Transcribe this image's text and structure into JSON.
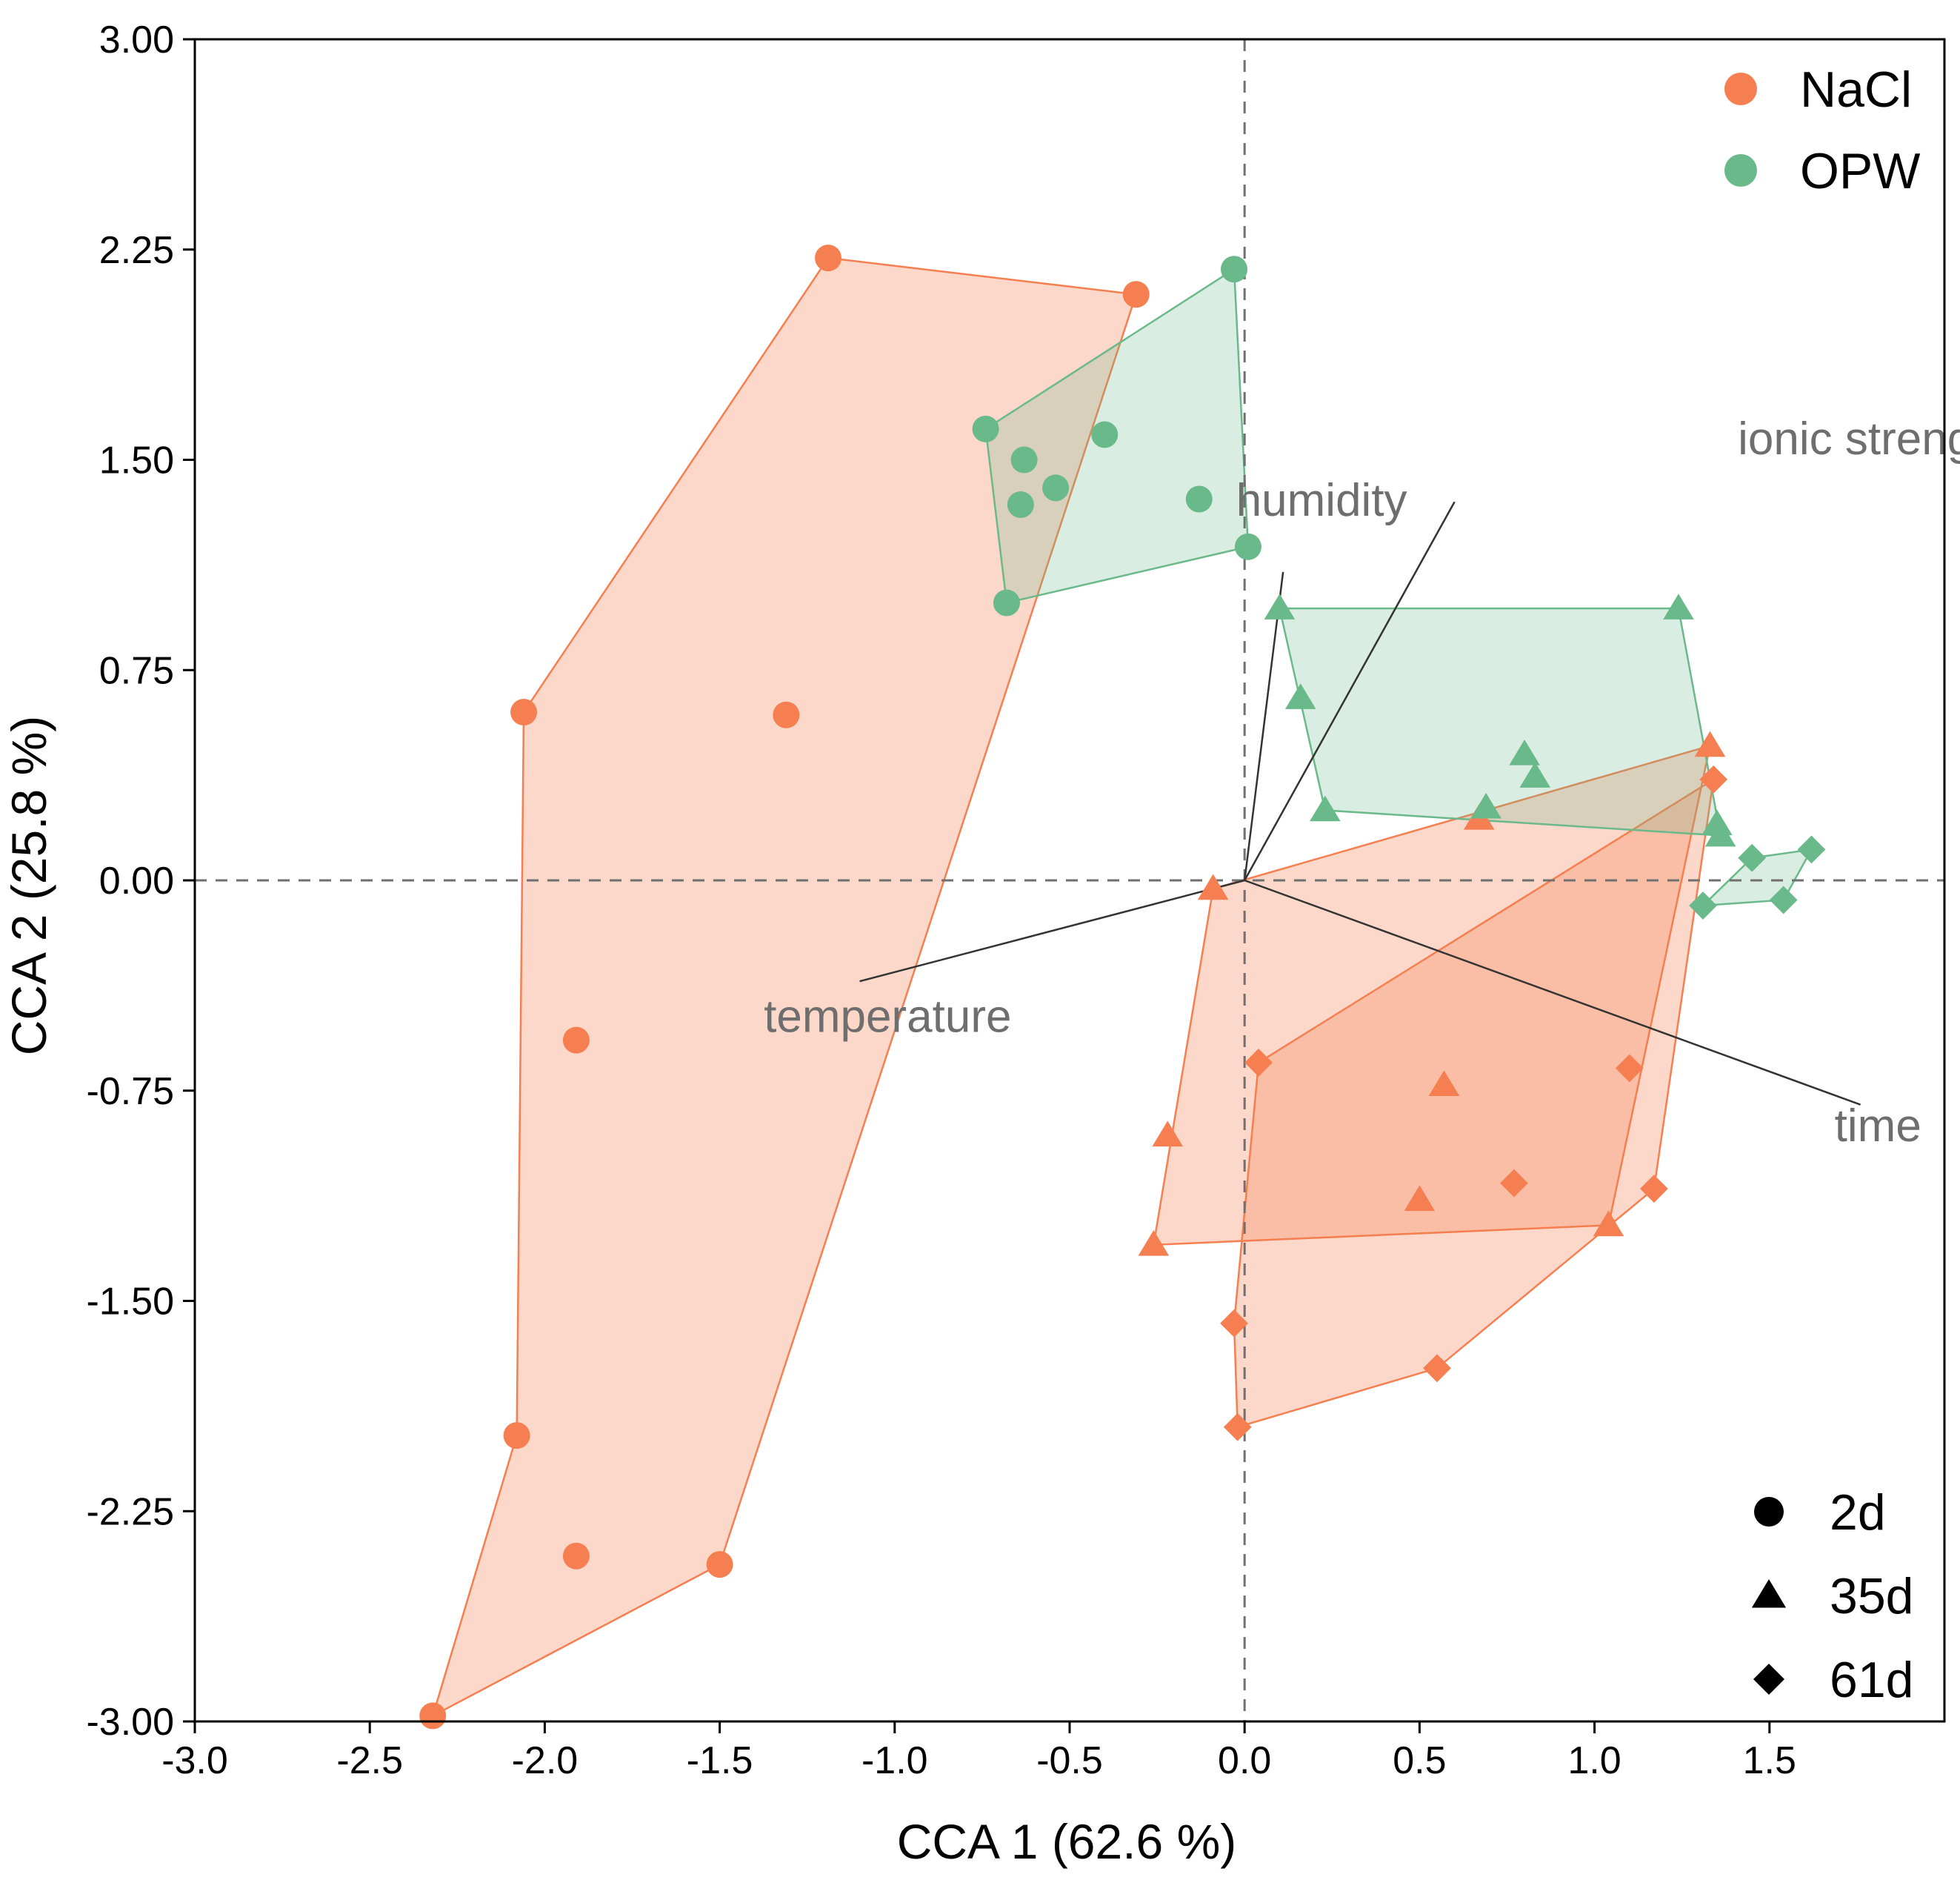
{
  "chart_data": {
    "type": "scatter",
    "title": "",
    "xlabel": "CCA 1 (62.6 %)",
    "ylabel": "CCA 2 (25.8 %)",
    "xlim": [
      -3.0,
      2.0
    ],
    "ylim": [
      -3.0,
      3.0
    ],
    "x_ticks": [
      -3.0,
      -2.5,
      -2.0,
      -1.5,
      -1.0,
      -0.5,
      0.0,
      0.5,
      1.0,
      1.5
    ],
    "x_tick_labels": [
      "-3.0",
      "-2.5",
      "-2.0",
      "-1.5",
      "-1.0",
      "-0.5",
      "0.0",
      "0.5",
      "1.0",
      "1.5"
    ],
    "y_ticks": [
      3.0,
      2.25,
      1.5,
      0.75,
      0.0,
      -0.75,
      -1.5,
      -2.25,
      -3.0
    ],
    "y_tick_labels": [
      "3.00",
      "2.25",
      "1.50",
      "0.75",
      "0.00",
      "-0.75",
      "-1.50",
      "-2.25",
      "-3.00"
    ],
    "colors": {
      "NaCl": "#F57F50",
      "OPW": "#6AB98A"
    },
    "legend_groups": {
      "placement": "top-right",
      "items": [
        {
          "label": "NaCl",
          "group": "NaCl"
        },
        {
          "label": "OPW",
          "group": "OPW"
        }
      ]
    },
    "legend_shapes": {
      "placement": "bottom-right",
      "items": [
        {
          "label": "2d",
          "shape": "circle"
        },
        {
          "label": "35d",
          "shape": "triangle"
        },
        {
          "label": "61d",
          "shape": "diamond"
        }
      ]
    },
    "vectors": [
      {
        "label": "ionic strength",
        "end": [
          0.6,
          1.35
        ],
        "label_pos": [
          1.8,
          1.52
        ]
      },
      {
        "label": "humidity",
        "end": [
          0.11,
          1.1
        ],
        "label_pos": [
          0.22,
          1.3
        ]
      },
      {
        "label": "temperature",
        "end": [
          -1.1,
          -0.36
        ],
        "label_pos": [
          -1.02,
          -0.54
        ]
      },
      {
        "label": "time",
        "end": [
          1.76,
          -0.8
        ],
        "label_pos": [
          1.81,
          -0.93
        ]
      }
    ],
    "series": [
      {
        "name": "NaCl 2d",
        "group": "NaCl",
        "shape": "circle",
        "points": [
          [
            -1.19,
            2.22
          ],
          [
            -0.31,
            2.09
          ],
          [
            -2.06,
            0.6
          ],
          [
            -1.31,
            0.59
          ],
          [
            -1.91,
            -0.57
          ],
          [
            -2.08,
            -1.98
          ],
          [
            -1.91,
            -2.41
          ],
          [
            -1.5,
            -2.44
          ],
          [
            -2.32,
            -2.98
          ]
        ],
        "hull": [
          [
            -1.19,
            2.22
          ],
          [
            -0.31,
            2.09
          ],
          [
            -1.5,
            -2.44
          ],
          [
            -2.32,
            -2.98
          ],
          [
            -2.08,
            -1.98
          ],
          [
            -2.06,
            0.6
          ]
        ]
      },
      {
        "name": "NaCl 35d",
        "group": "NaCl",
        "shape": "triangle",
        "points": [
          [
            1.33,
            0.48
          ],
          [
            0.67,
            0.22
          ],
          [
            -0.09,
            -0.03
          ],
          [
            0.57,
            -0.73
          ],
          [
            -0.22,
            -0.91
          ],
          [
            0.5,
            -1.14
          ],
          [
            -0.26,
            -1.3
          ],
          [
            1.04,
            -1.23
          ]
        ],
        "hull": [
          [
            1.33,
            0.48
          ],
          [
            1.04,
            -1.23
          ],
          [
            -0.26,
            -1.3
          ],
          [
            -0.09,
            -0.03
          ]
        ]
      },
      {
        "name": "NaCl 61d",
        "group": "NaCl",
        "shape": "diamond",
        "points": [
          [
            1.34,
            0.36
          ],
          [
            0.04,
            -0.65
          ],
          [
            1.1,
            -0.67
          ],
          [
            0.77,
            -1.08
          ],
          [
            1.17,
            -1.1
          ],
          [
            -0.03,
            -1.58
          ],
          [
            0.55,
            -1.74
          ],
          [
            -0.02,
            -1.95
          ]
        ],
        "hull": [
          [
            1.34,
            0.36
          ],
          [
            1.17,
            -1.1
          ],
          [
            0.55,
            -1.74
          ],
          [
            -0.02,
            -1.95
          ],
          [
            -0.03,
            -1.58
          ],
          [
            0.04,
            -0.65
          ]
        ]
      },
      {
        "name": "OPW 2d",
        "group": "OPW",
        "shape": "circle",
        "points": [
          [
            -0.03,
            2.18
          ],
          [
            -0.74,
            1.61
          ],
          [
            -0.4,
            1.59
          ],
          [
            -0.63,
            1.5
          ],
          [
            -0.54,
            1.4
          ],
          [
            -0.64,
            1.34
          ],
          [
            -0.13,
            1.36
          ],
          [
            0.01,
            1.19
          ],
          [
            -0.68,
            0.99
          ]
        ],
        "hull": [
          [
            -0.03,
            2.18
          ],
          [
            0.01,
            1.19
          ],
          [
            -0.68,
            0.99
          ],
          [
            -0.74,
            1.61
          ]
        ]
      },
      {
        "name": "OPW 35d",
        "group": "OPW",
        "shape": "triangle",
        "points": [
          [
            0.1,
            0.97
          ],
          [
            1.24,
            0.97
          ],
          [
            0.16,
            0.65
          ],
          [
            0.8,
            0.45
          ],
          [
            0.83,
            0.37
          ],
          [
            0.23,
            0.25
          ],
          [
            0.69,
            0.26
          ],
          [
            1.35,
            0.2
          ],
          [
            1.36,
            0.16
          ]
        ],
        "hull": [
          [
            0.1,
            0.97
          ],
          [
            1.24,
            0.97
          ],
          [
            1.36,
            0.16
          ],
          [
            0.23,
            0.25
          ]
        ]
      },
      {
        "name": "OPW 61d",
        "group": "OPW",
        "shape": "diamond",
        "points": [
          [
            1.62,
            0.11
          ],
          [
            1.45,
            0.08
          ],
          [
            1.54,
            -0.07
          ],
          [
            1.31,
            -0.09
          ]
        ],
        "hull": [
          [
            1.62,
            0.11
          ],
          [
            1.54,
            -0.07
          ],
          [
            1.31,
            -0.09
          ],
          [
            1.45,
            0.08
          ]
        ]
      }
    ]
  }
}
